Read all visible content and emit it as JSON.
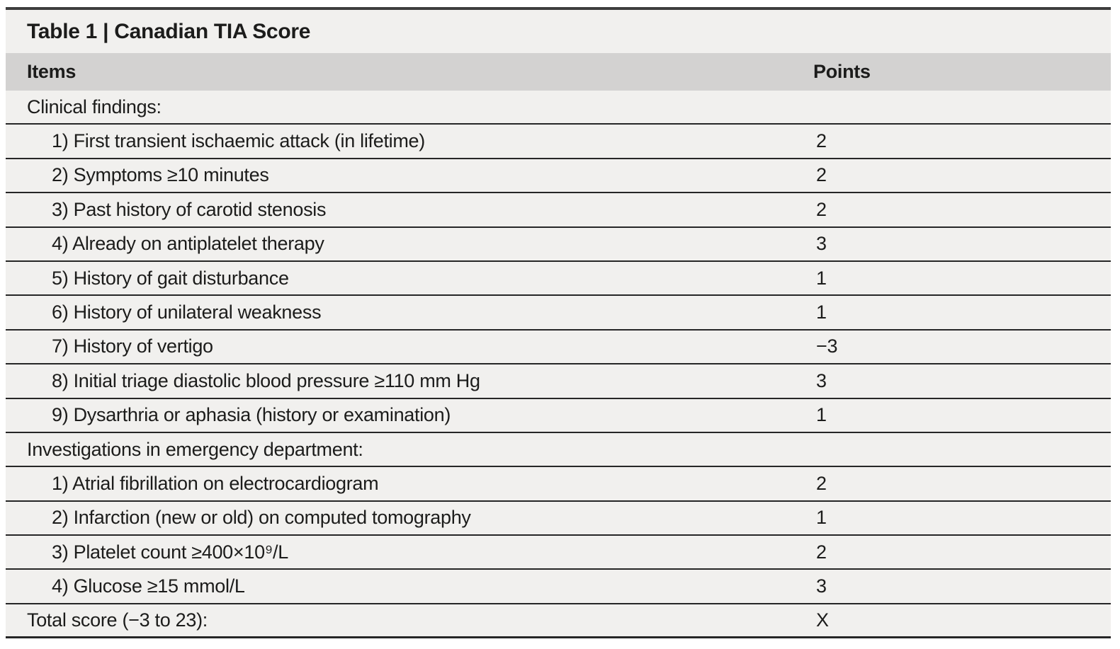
{
  "table": {
    "title": "Table 1 | Canadian TIA Score",
    "columns": [
      "Items",
      "Points"
    ],
    "colors": {
      "top_rule": "#3d3d3d",
      "title_bg": "#f1f0ee",
      "header_bg": "#d3d2d1",
      "row_bg": "#f1f0ee",
      "divider": "#262626",
      "text": "#1c1c1b"
    },
    "rows": [
      {
        "type": "section",
        "label": "Clinical findings:",
        "points": ""
      },
      {
        "type": "item",
        "label": "1) First transient ischaemic attack (in lifetime)",
        "points": "2"
      },
      {
        "type": "item",
        "label": "2) Symptoms ≥10 minutes",
        "points": "2"
      },
      {
        "type": "item",
        "label": "3) Past history of carotid stenosis",
        "points": "2"
      },
      {
        "type": "item",
        "label": "4) Already on antiplatelet therapy",
        "points": "3"
      },
      {
        "type": "item",
        "label": "5) History of gait disturbance",
        "points": "1"
      },
      {
        "type": "item",
        "label": "6) History of unilateral weakness",
        "points": "1"
      },
      {
        "type": "item",
        "label": "7) History of vertigo",
        "points": "−3"
      },
      {
        "type": "item",
        "label": "8) Initial triage diastolic blood pressure ≥110 mm Hg",
        "points": "3"
      },
      {
        "type": "item",
        "label": "9) Dysarthria or aphasia (history or examination)",
        "points": "1"
      },
      {
        "type": "section",
        "label": "Investigations in emergency department:",
        "points": ""
      },
      {
        "type": "item",
        "label": "1) Atrial fibrillation on electrocardiogram",
        "points": "2"
      },
      {
        "type": "item",
        "label": "2) Infarction (new or old) on computed tomography",
        "points": "1"
      },
      {
        "type": "item",
        "label": "3) Platelet count ≥400×10⁹/L",
        "points": "2"
      },
      {
        "type": "item",
        "label": "4) Glucose ≥15 mmol/L",
        "points": "3"
      },
      {
        "type": "total",
        "label": "Total score (−3 to 23):",
        "points": "X"
      }
    ]
  }
}
